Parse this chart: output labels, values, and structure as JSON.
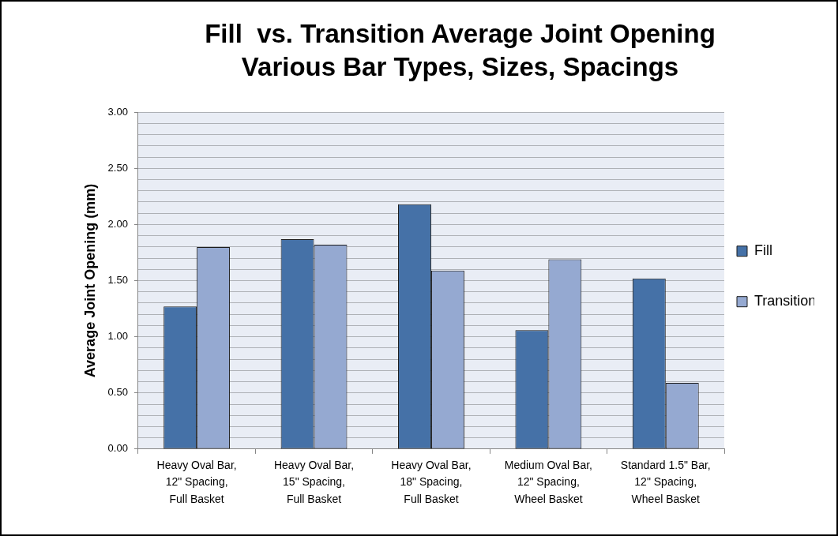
{
  "chart_data": {
    "type": "bar",
    "title": "Fill  vs. Transition Average Joint Opening",
    "subtitle": "Various Bar Types, Sizes, Spacings",
    "ylabel": "Average Joint Opening (mm)",
    "categories": [
      "Heavy Oval Bar, 12\" Spacing, Full Basket",
      "Heavy Oval Bar, 15\" Spacing, Full Basket",
      "Heavy Oval Bar, 18\" Spacing, Full Basket",
      "Medium Oval Bar, 12\" Spacing, Wheel Basket",
      "Standard 1.5\" Bar, 12\" Spacing, Wheel Basket"
    ],
    "series": [
      {
        "name": "Fill",
        "color": "#4571a7",
        "values": [
          1.27,
          1.87,
          2.18,
          1.06,
          1.52
        ]
      },
      {
        "name": "Transition",
        "color": "#95a9d1",
        "values": [
          1.8,
          1.82,
          1.59,
          1.69,
          0.59
        ]
      }
    ],
    "ylim": [
      0,
      3
    ],
    "yticks": [
      {
        "value": 0,
        "label": "0.00"
      },
      {
        "value": 0.1,
        "label": null
      },
      {
        "value": 0.2,
        "label": null
      },
      {
        "value": 0.3,
        "label": null
      },
      {
        "value": 0.4,
        "label": null
      },
      {
        "value": 0.5,
        "label": "0.50"
      },
      {
        "value": 0.6,
        "label": null
      },
      {
        "value": 0.7,
        "label": null
      },
      {
        "value": 0.8,
        "label": null
      },
      {
        "value": 0.9,
        "label": null
      },
      {
        "value": 1,
        "label": "1.00"
      },
      {
        "value": 1.1,
        "label": null
      },
      {
        "value": 1.2,
        "label": null
      },
      {
        "value": 1.3,
        "label": null
      },
      {
        "value": 1.4,
        "label": null
      },
      {
        "value": 1.5,
        "label": "1.50"
      },
      {
        "value": 1.6,
        "label": null
      },
      {
        "value": 1.7,
        "label": null
      },
      {
        "value": 1.8,
        "label": null
      },
      {
        "value": 1.9,
        "label": null
      },
      {
        "value": 2,
        "label": "2.00"
      },
      {
        "value": 2.1,
        "label": null
      },
      {
        "value": 2.2,
        "label": null
      },
      {
        "value": 2.3,
        "label": null
      },
      {
        "value": 2.4,
        "label": null
      },
      {
        "value": 2.5,
        "label": "2.50"
      },
      {
        "value": 2.6,
        "label": null
      },
      {
        "value": 2.7,
        "label": null
      },
      {
        "value": 2.8,
        "label": null
      },
      {
        "value": 2.9,
        "label": null
      },
      {
        "value": 3,
        "label": "3.00"
      }
    ],
    "grid": "y",
    "legend": "right"
  }
}
